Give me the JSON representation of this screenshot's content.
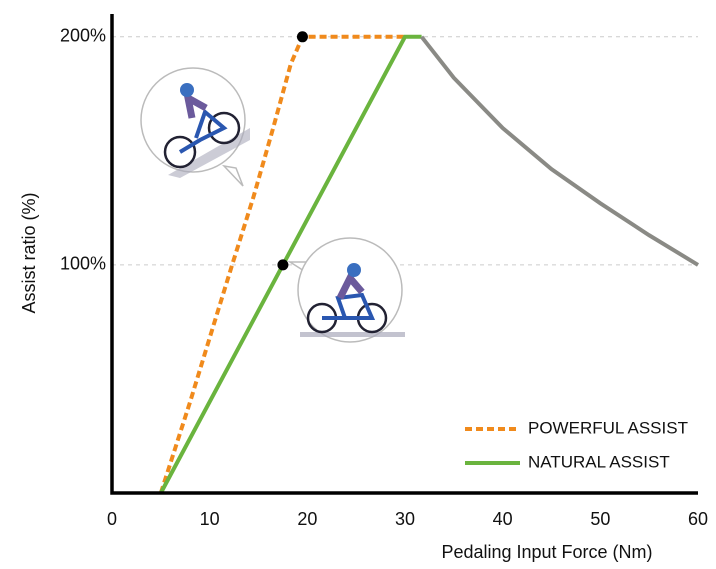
{
  "chart_data": {
    "type": "line",
    "xlabel": "Pedaling Input Force (Nm)",
    "ylabel": "Assist ratio (%)",
    "xlim": [
      0,
      60
    ],
    "ylim": [
      0,
      210
    ],
    "xticks": [
      0,
      10,
      20,
      30,
      40,
      50,
      60
    ],
    "yticks": [
      {
        "value": 100,
        "label": "100%"
      },
      {
        "value": 200,
        "label": "200%"
      }
    ],
    "grid": true,
    "legend": "lower right",
    "series": [
      {
        "name": "POWERFUL ASSIST",
        "color": "#f08a1c",
        "dashed": true,
        "x": [
          5,
          8,
          10.5,
          12.3,
          14.5,
          16.5,
          18.3,
          19.5,
          30
        ],
        "values": [
          0,
          40,
          75,
          100,
          130,
          160,
          188,
          200,
          200
        ]
      },
      {
        "name": "NATURAL ASSIST",
        "color": "#6ab43e",
        "x": [
          5,
          30,
          31.7
        ],
        "values": [
          0,
          200,
          200
        ]
      },
      {
        "color": "#8a8a85",
        "x": [
          31.7,
          35,
          40,
          45,
          50,
          55,
          60
        ],
        "values": [
          200,
          182,
          160,
          142,
          127,
          113,
          100
        ]
      }
    ],
    "markers": {
      "x": [
        19.5,
        17.5
      ],
      "values": [
        200,
        100
      ]
    }
  }
}
